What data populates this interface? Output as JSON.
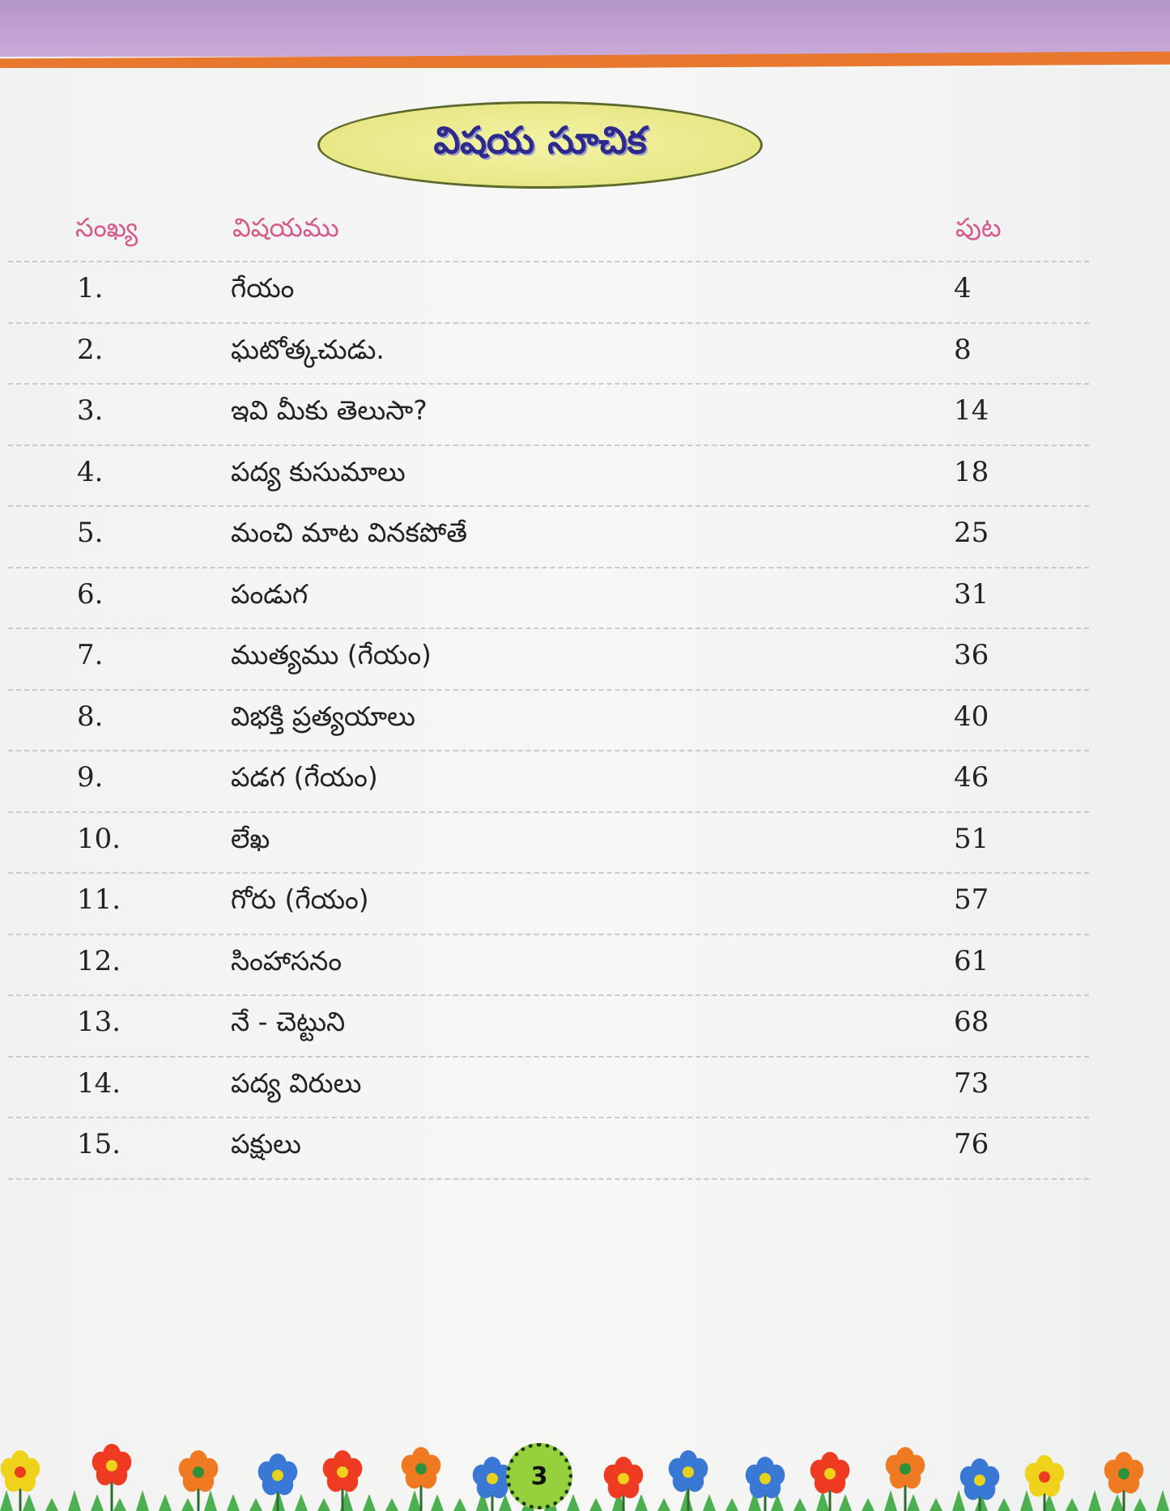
{
  "title": "విషయ సూచిక",
  "headers": {
    "number": "సంఖ్య",
    "subject": "విషయము",
    "page": "పుట"
  },
  "rows": [
    {
      "number": "1.",
      "subject": "గేయం",
      "page": "4"
    },
    {
      "number": "2.",
      "subject": "ఘటోత్కచుడు.",
      "page": "8"
    },
    {
      "number": "3.",
      "subject": "ఇవి మీకు తెలుసా?",
      "page": "14"
    },
    {
      "number": "4.",
      "subject": "పద్య కుసుమాలు",
      "page": "18"
    },
    {
      "number": "5.",
      "subject": "మంచి మాట వినకపోతే",
      "page": "25"
    },
    {
      "number": "6.",
      "subject": "పండుగ",
      "page": "31"
    },
    {
      "number": "7.",
      "subject": "ముత్యము (గేయం)",
      "page": "36"
    },
    {
      "number": "8.",
      "subject": "విభక్తి ప్రత్యయాలు",
      "page": "40"
    },
    {
      "number": "9.",
      "subject": "పడగ (గేయం)",
      "page": "46"
    },
    {
      "number": "10.",
      "subject": "లేఖ",
      "page": "51"
    },
    {
      "number": "11.",
      "subject": "గోరు (గేయం)",
      "page": "57"
    },
    {
      "number": "12.",
      "subject": "సింహాసనం",
      "page": "61"
    },
    {
      "number": "13.",
      "subject": "నే - చెట్టుని",
      "page": "68"
    },
    {
      "number": "14.",
      "subject": "పద్య విరులు",
      "page": "73"
    },
    {
      "number": "15.",
      "subject": "పక్షులు",
      "page": "76"
    }
  ],
  "page_number": "3",
  "colors": {
    "header_text": "#d55a8a",
    "title_text": "#2e2a8c",
    "title_oval": "#e4e37a",
    "top_band": "#c9a9d8",
    "rule": "#e8782e"
  }
}
